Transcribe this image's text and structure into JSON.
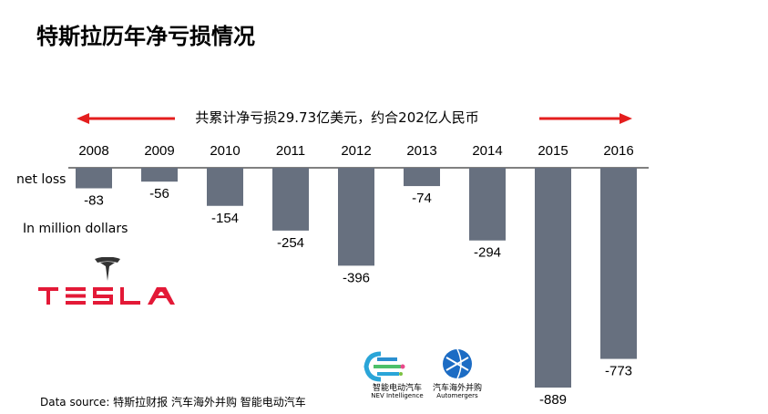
{
  "page": {
    "title": "特斯拉历年净亏损情况",
    "annotation": "共累计净亏损29.73亿美元，约合202亿人民币",
    "side_label_1": "net loss",
    "side_label_2": "In million dollars",
    "source": "Data source: 特斯拉财报     汽车海外并购   智能电动汽车",
    "logos": {
      "tesla_text": "TESLA",
      "nev_cn": "智能电动汽车",
      "nev_en": "NEV Intelligence",
      "auto_cn": "汽车海外并购",
      "auto_en": "Automergers"
    }
  },
  "colors": {
    "bar": "#67707f",
    "arrow": "#e41e1e",
    "tesla": "#e31937"
  },
  "chart_data": {
    "type": "bar",
    "categories": [
      "2008",
      "2009",
      "2010",
      "2011",
      "2012",
      "2013",
      "2014",
      "2015",
      "2016"
    ],
    "values": [
      -83,
      -56,
      -154,
      -254,
      -396,
      -74,
      -294,
      -889,
      -773
    ],
    "value_labels": [
      "-83",
      "-56",
      "-154",
      "-254",
      "-396",
      "-74",
      "-294",
      "-889",
      "-773"
    ],
    "title": "特斯拉历年净亏损情况",
    "xlabel": "",
    "ylabel": "net loss In million dollars",
    "ylim": [
      -900,
      0
    ],
    "grid": false
  }
}
